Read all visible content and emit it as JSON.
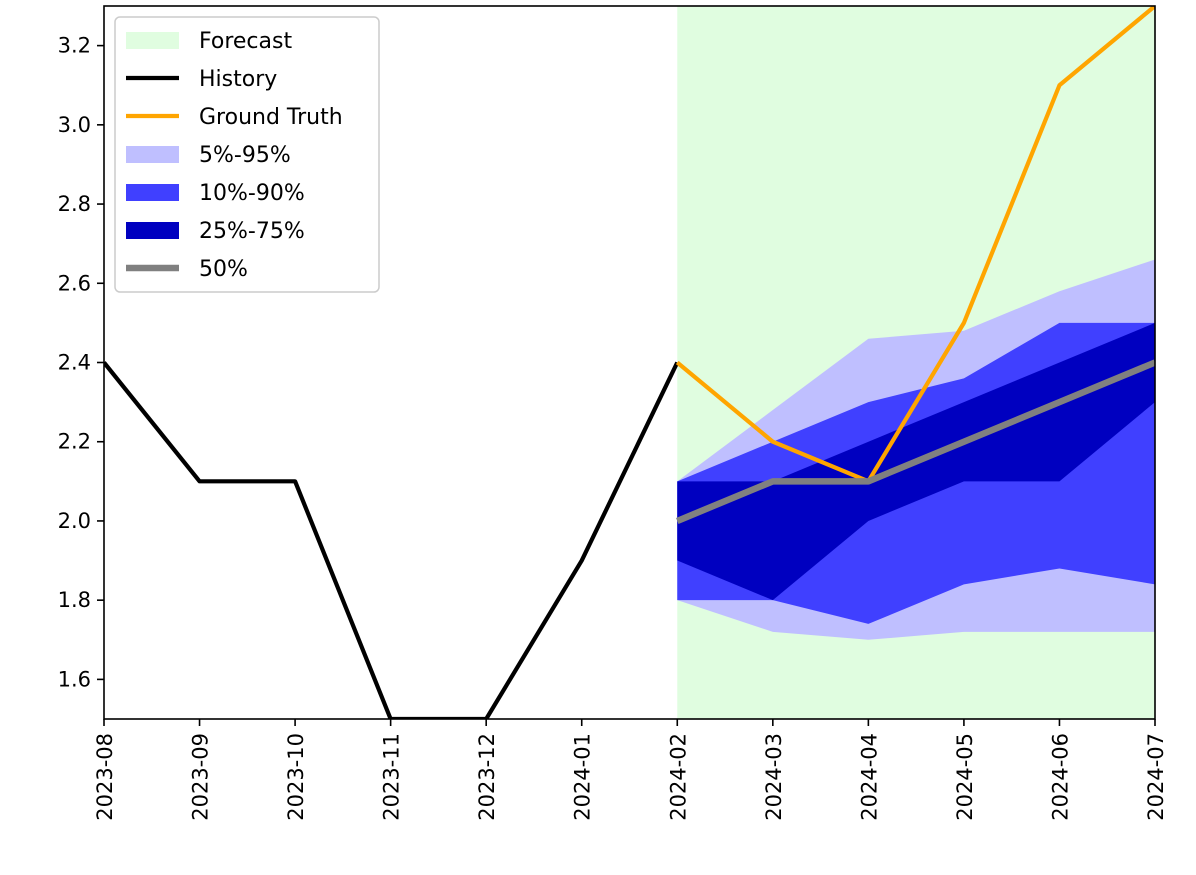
{
  "chart_data": {
    "type": "line",
    "title": "",
    "xlabel": "",
    "ylabel": "",
    "ylim": [
      1.5,
      3.3
    ],
    "x_categories": [
      "2023-08",
      "2023-09",
      "2023-10",
      "2023-11",
      "2023-12",
      "2024-01",
      "2024-02",
      "2024-03",
      "2024-04",
      "2024-05",
      "2024-06",
      "2024-07"
    ],
    "yticks": [
      "1.6",
      "1.8",
      "2.0",
      "2.2",
      "2.4",
      "2.6",
      "2.8",
      "3.0",
      "3.2"
    ],
    "grid": false,
    "legend_position": "top-left",
    "forecast_region": {
      "label": "Forecast",
      "x_start": "2024-02",
      "x_end": "2024-07",
      "color": "#e0fde0"
    },
    "history": {
      "name": "History",
      "color": "#000000",
      "x": [
        "2023-08",
        "2023-09",
        "2023-10",
        "2023-11",
        "2023-12",
        "2024-01",
        "2024-02"
      ],
      "values": [
        2.4,
        2.1,
        2.1,
        1.5,
        1.5,
        1.9,
        2.4
      ]
    },
    "ground_truth": {
      "name": "Ground Truth",
      "color": "#ffa500",
      "x": [
        "2024-02",
        "2024-03",
        "2024-04",
        "2024-05",
        "2024-06",
        "2024-07"
      ],
      "values": [
        2.4,
        2.2,
        2.1,
        2.5,
        3.1,
        3.3
      ]
    },
    "quantile_bands": [
      {
        "name": "5%-95%",
        "color": "#bfbfff",
        "x": [
          "2024-02",
          "2024-03",
          "2024-04",
          "2024-05",
          "2024-06",
          "2024-07"
        ],
        "lower": [
          1.8,
          1.72,
          1.7,
          1.72,
          1.72,
          1.72
        ],
        "upper": [
          2.1,
          2.28,
          2.46,
          2.48,
          2.58,
          2.66
        ]
      },
      {
        "name": "10%-90%",
        "color": "#4040ff",
        "x": [
          "2024-02",
          "2024-03",
          "2024-04",
          "2024-05",
          "2024-06",
          "2024-07"
        ],
        "lower": [
          1.8,
          1.8,
          1.74,
          1.84,
          1.88,
          1.84
        ],
        "upper": [
          2.1,
          2.2,
          2.3,
          2.36,
          2.5,
          2.5
        ]
      },
      {
        "name": "25%-75%",
        "color": "#0000c0",
        "x": [
          "2024-02",
          "2024-03",
          "2024-04",
          "2024-05",
          "2024-06",
          "2024-07"
        ],
        "lower": [
          1.9,
          1.8,
          2.0,
          2.1,
          2.1,
          2.3
        ],
        "upper": [
          2.1,
          2.1,
          2.2,
          2.3,
          2.4,
          2.5
        ]
      }
    ],
    "median": {
      "name": "50%",
      "color": "#808080",
      "x": [
        "2024-02",
        "2024-03",
        "2024-04",
        "2024-05",
        "2024-06",
        "2024-07"
      ],
      "values": [
        2.0,
        2.1,
        2.1,
        2.2,
        2.3,
        2.4
      ]
    }
  }
}
